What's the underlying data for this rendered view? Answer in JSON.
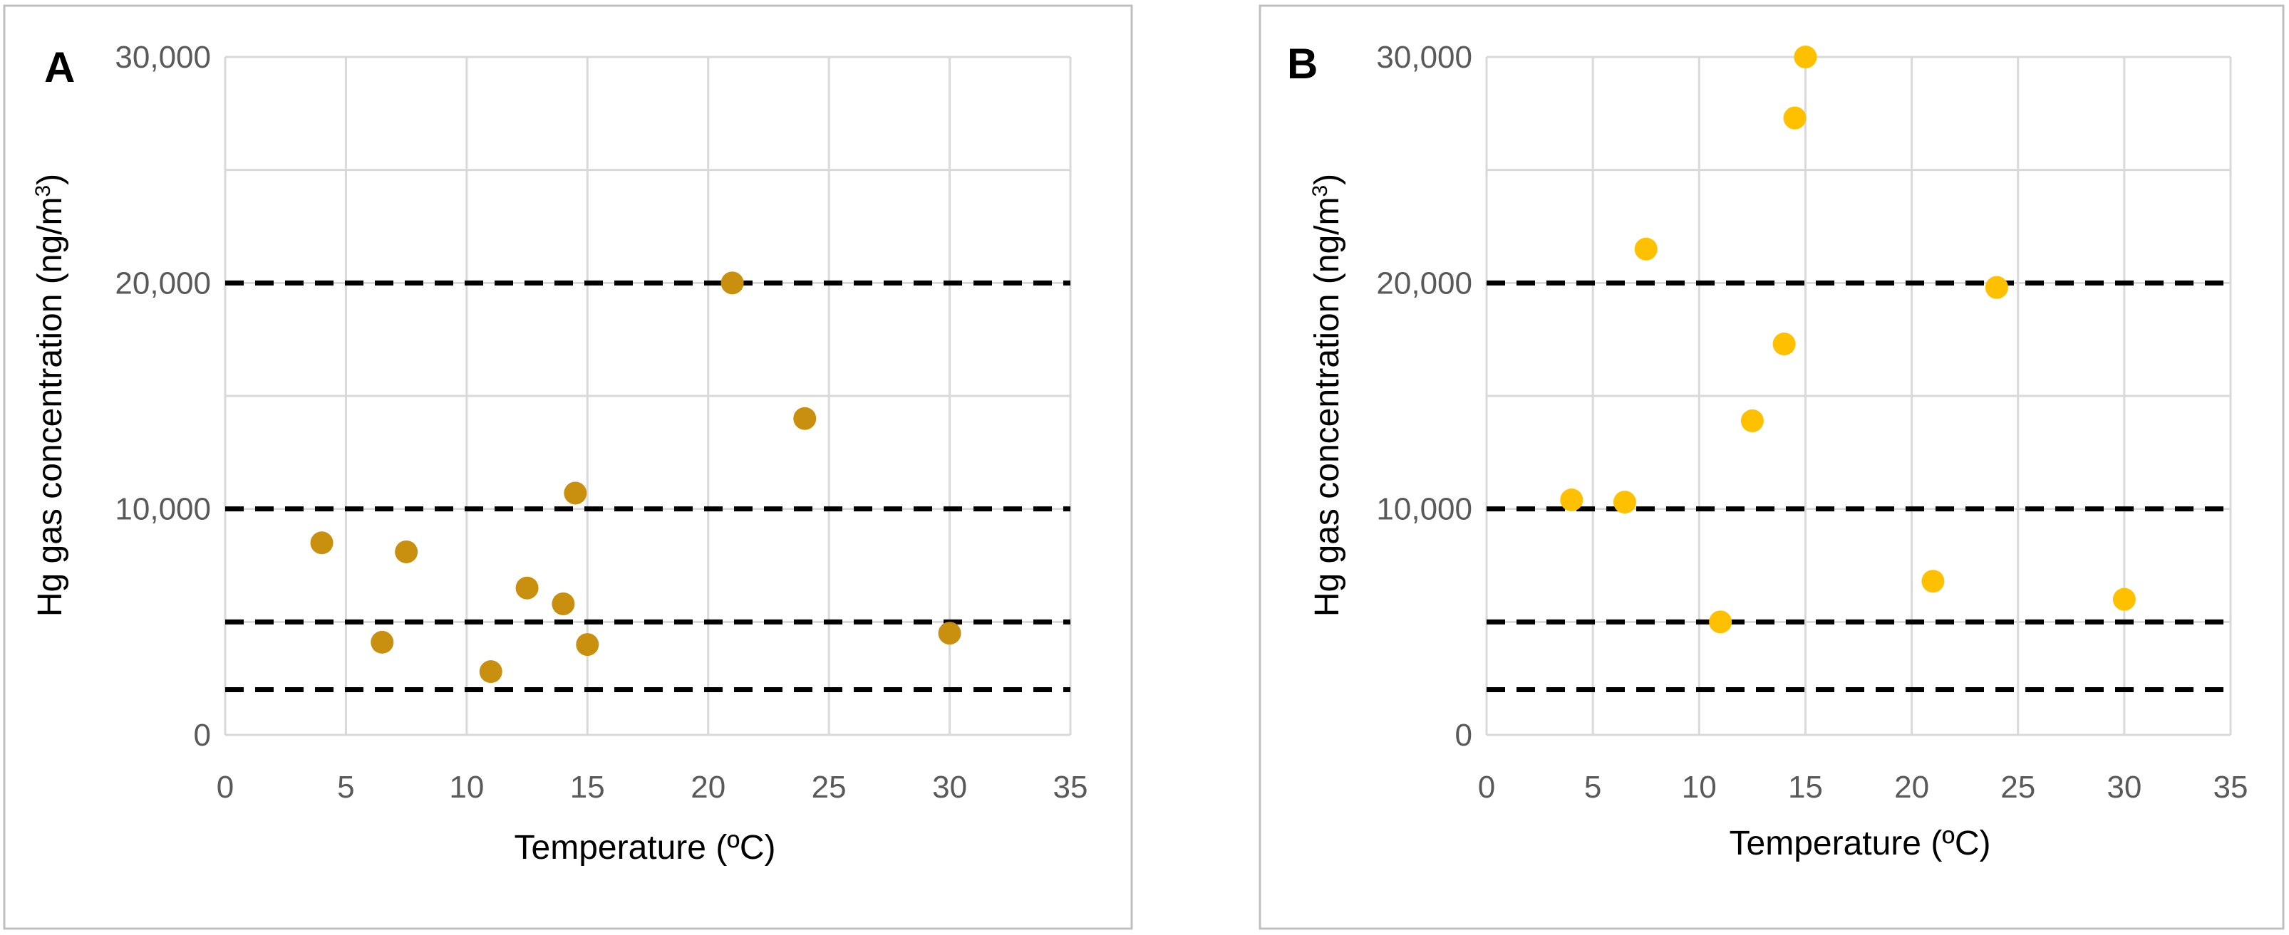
{
  "chart_data": [
    {
      "type": "scatter",
      "panel_label": "A",
      "xlabel": "Temperature (ºC)",
      "ylabel_main": "Hg gas concentration (ng/m",
      "ylabel_sup": "3",
      "ylabel_end": ")",
      "xlim": [
        0,
        35
      ],
      "ylim": [
        0,
        30000
      ],
      "x_ticks": [
        0,
        5,
        10,
        15,
        20,
        25,
        30,
        35
      ],
      "y_ticks": [
        0,
        10000,
        20000,
        30000
      ],
      "y_tick_labels": [
        "0",
        "10,000",
        "20,000",
        "30,000"
      ],
      "grid_y": [
        0,
        5000,
        10000,
        15000,
        20000,
        25000,
        30000
      ],
      "grid_x": [
        0,
        5,
        10,
        15,
        20,
        25,
        30,
        35
      ],
      "reference_lines": [
        2000,
        5000,
        10000,
        20000
      ],
      "marker_color": "#C8900E",
      "points": [
        {
          "x": 4,
          "y": 8500
        },
        {
          "x": 6.5,
          "y": 4100
        },
        {
          "x": 7.5,
          "y": 8100
        },
        {
          "x": 11,
          "y": 2800
        },
        {
          "x": 12.5,
          "y": 6500
        },
        {
          "x": 14,
          "y": 5800
        },
        {
          "x": 14.5,
          "y": 10700
        },
        {
          "x": 15,
          "y": 4000
        },
        {
          "x": 21,
          "y": 20000
        },
        {
          "x": 24,
          "y": 14000
        },
        {
          "x": 30,
          "y": 4500
        }
      ]
    },
    {
      "type": "scatter",
      "panel_label": "B",
      "xlabel": "Temperature (ºC)",
      "ylabel_main": "Hg gas concentration (ng/m",
      "ylabel_sup": "3",
      "ylabel_end": ")",
      "xlim": [
        0,
        35
      ],
      "ylim": [
        0,
        30000
      ],
      "x_ticks": [
        0,
        5,
        10,
        15,
        20,
        25,
        30,
        35
      ],
      "y_ticks": [
        0,
        10000,
        20000,
        30000
      ],
      "y_tick_labels": [
        "0",
        "10,000",
        "20,000",
        "30,000"
      ],
      "grid_y": [
        0,
        5000,
        10000,
        15000,
        20000,
        25000,
        30000
      ],
      "grid_x": [
        0,
        5,
        10,
        15,
        20,
        25,
        30,
        35
      ],
      "reference_lines": [
        2000,
        5000,
        10000,
        20000
      ],
      "marker_color": "#FFC000",
      "points": [
        {
          "x": 4,
          "y": 10400
        },
        {
          "x": 6.5,
          "y": 10300
        },
        {
          "x": 7.5,
          "y": 21500
        },
        {
          "x": 11,
          "y": 5000
        },
        {
          "x": 12.5,
          "y": 13900
        },
        {
          "x": 14,
          "y": 17300
        },
        {
          "x": 14.5,
          "y": 27300
        },
        {
          "x": 15,
          "y": 30000
        },
        {
          "x": 21,
          "y": 6800
        },
        {
          "x": 24,
          "y": 19800
        },
        {
          "x": 30,
          "y": 6000
        }
      ]
    }
  ]
}
